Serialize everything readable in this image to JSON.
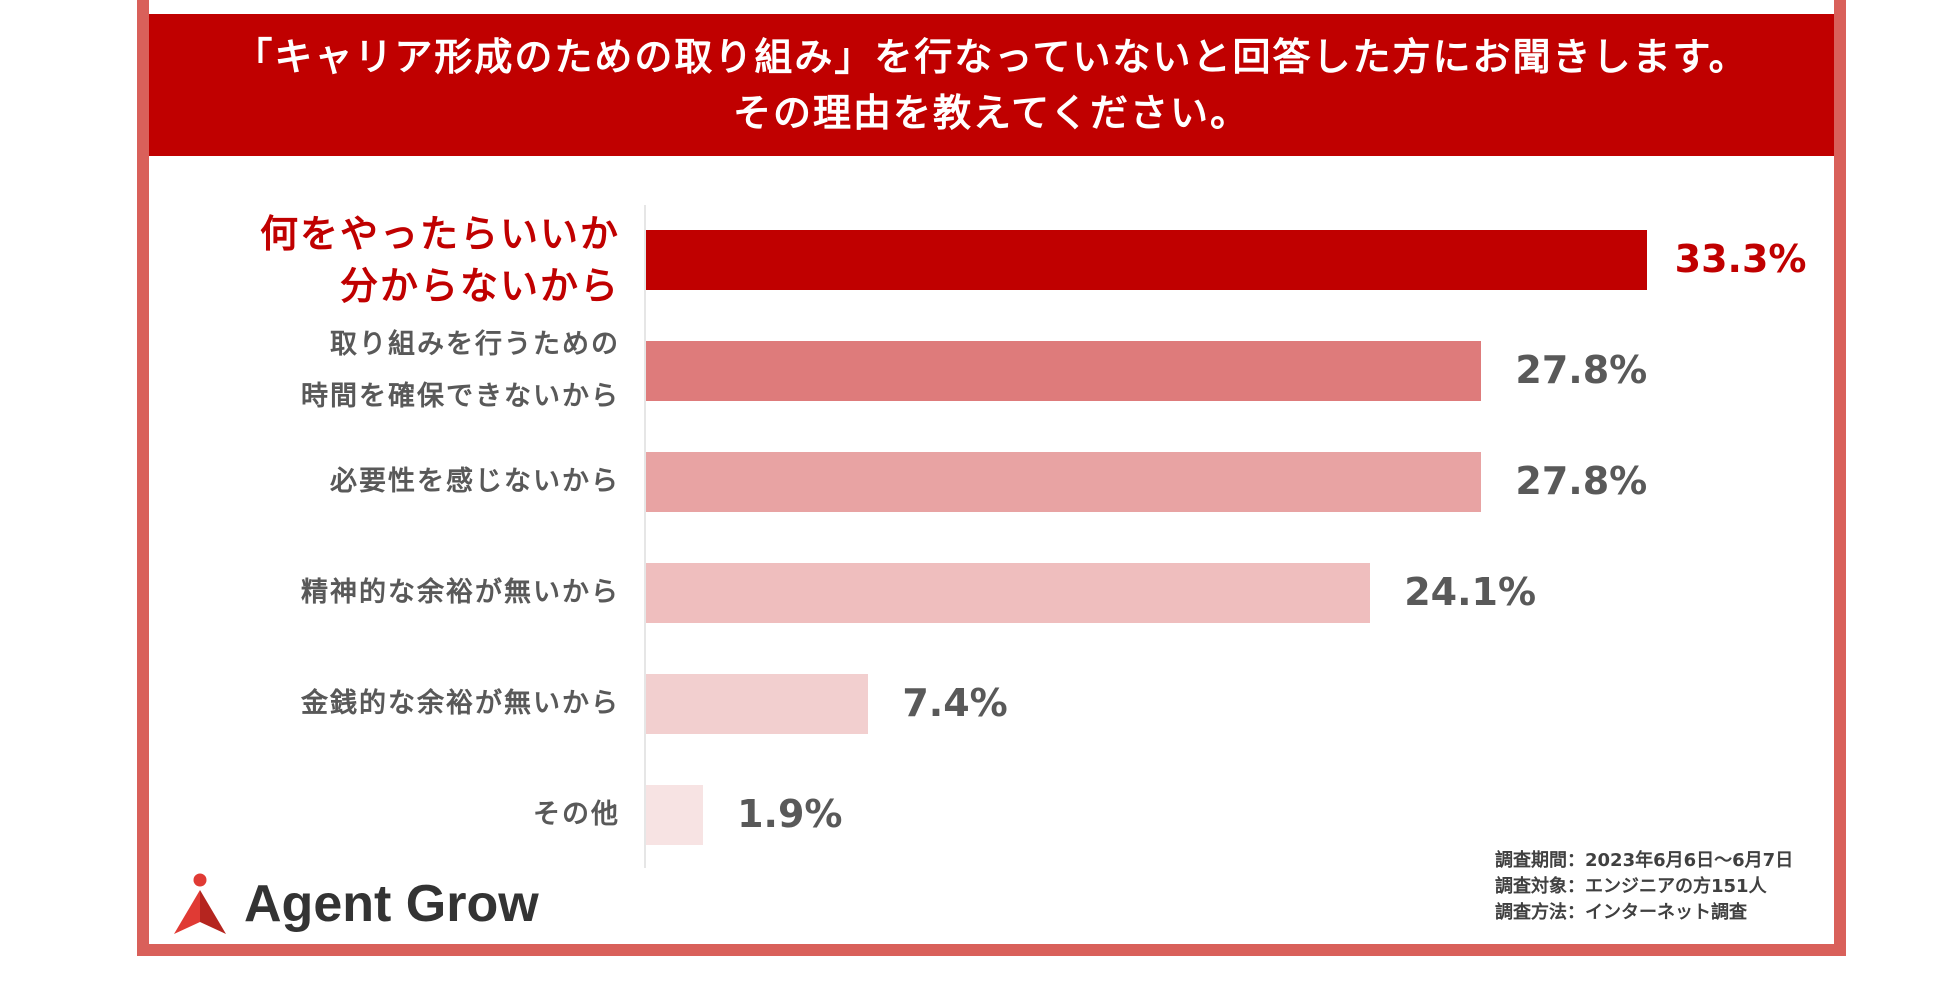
{
  "header": {
    "line1": "「キャリア形成のための取り組み」を行なっていないと回答した方にお聞きします。",
    "line2": "その理由を教えてください。"
  },
  "colors": {
    "highlight": "#c00000",
    "frame": "#d9605a",
    "bars": [
      "#c00000",
      "#de7b7b",
      "#e8a3a3",
      "#efbebe",
      "#f2cfcf",
      "#f7e3e3"
    ]
  },
  "chart_data": {
    "type": "bar",
    "orientation": "horizontal",
    "categories": [
      [
        "何をやったらいいか",
        "分からないから"
      ],
      [
        "取り組みを行うための",
        "時間を確保できないから"
      ],
      [
        "必要性を感じないから"
      ],
      [
        "精神的な余裕が無いから"
      ],
      [
        "金銭的な余裕が無いから"
      ],
      [
        "その他"
      ]
    ],
    "values": [
      33.3,
      27.8,
      27.8,
      24.1,
      7.4,
      1.9
    ],
    "value_labels": [
      "33.3%",
      "27.8%",
      "27.8%",
      "24.1%",
      "7.4%",
      "1.9%"
    ],
    "highlight_index": 0,
    "xlim": [
      0,
      35
    ],
    "grid": false,
    "legend": false
  },
  "logo": {
    "text": "Agent Grow"
  },
  "notes": [
    "調査期間：2023年6月6日～6月7日",
    "調査対象：エンジニアの方151人",
    "調査方法：インターネット調査"
  ]
}
